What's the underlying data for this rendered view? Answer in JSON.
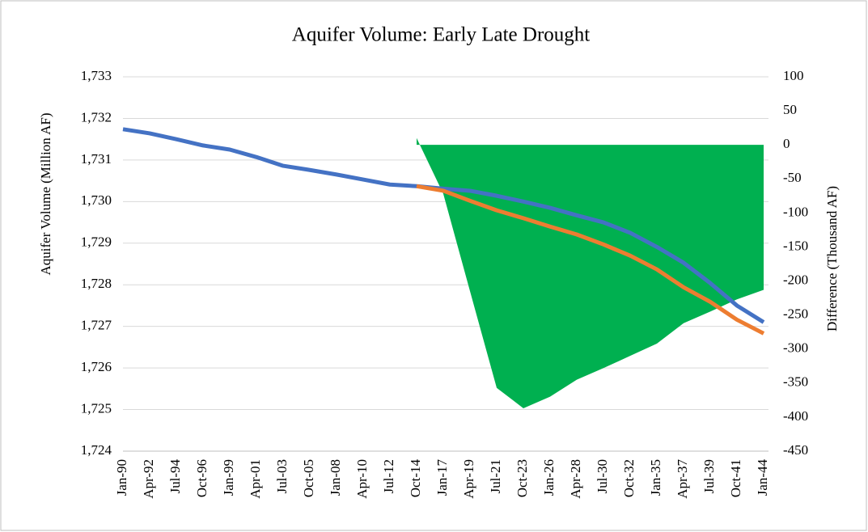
{
  "chart_data": {
    "type": "line",
    "title": "Aquifer Volume: Early Late Drought",
    "y_label": "Aquifer Volume (Million  AF)",
    "y2_label": "Difference (Thousand AF)",
    "categories": [
      "Jan-90",
      "Apr-92",
      "Jul-94",
      "Oct-96",
      "Jan-99",
      "Apr-01",
      "Jul-03",
      "Oct-05",
      "Jan-08",
      "Apr-10",
      "Jul-12",
      "Oct-14",
      "Jan-17",
      "Apr-19",
      "Jul-21",
      "Oct-23",
      "Jan-26",
      "Apr-28",
      "Jul-30",
      "Oct-32",
      "Jan-35",
      "Apr-37",
      "Jul-39",
      "Oct-41",
      "Jan-44"
    ],
    "series": [
      {
        "type": "area",
        "axis": "y2",
        "color": "#00b050",
        "values": [
          null,
          null,
          null,
          null,
          null,
          null,
          null,
          null,
          null,
          null,
          null,
          10,
          -72,
          -215,
          -357,
          -387,
          -370,
          -345,
          -328,
          -310,
          -292,
          -262,
          -245,
          -227,
          -213
        ]
      },
      {
        "type": "line",
        "color": "#4472c4",
        "values": [
          1731.74,
          1731.64,
          1731.5,
          1731.35,
          1731.25,
          1731.07,
          1730.86,
          1730.76,
          1730.65,
          1730.53,
          1730.41,
          1730.37,
          1730.31,
          1730.26,
          1730.14,
          1730.0,
          1729.85,
          1729.67,
          1729.5,
          1729.25,
          1728.91,
          1728.53,
          1728.04,
          1727.5,
          1727.1
        ]
      },
      {
        "type": "line",
        "color": "#ed7d31",
        "values": [
          null,
          null,
          null,
          null,
          null,
          null,
          null,
          null,
          null,
          null,
          null,
          1730.37,
          1730.26,
          1730.02,
          1729.79,
          1729.6,
          1729.4,
          1729.21,
          1728.97,
          1728.7,
          1728.37,
          1727.94,
          1727.59,
          1727.16,
          1726.83
        ]
      }
    ],
    "ylim": [
      1724,
      1733
    ],
    "yticks": [
      {
        "value": 1724,
        "label": "1,724"
      },
      {
        "value": 1725,
        "label": "1,725"
      },
      {
        "value": 1726,
        "label": "1,726"
      },
      {
        "value": 1727,
        "label": "1,727"
      },
      {
        "value": 1728,
        "label": "1,728"
      },
      {
        "value": 1729,
        "label": "1,729"
      },
      {
        "value": 1730,
        "label": "1,730"
      },
      {
        "value": 1731,
        "label": "1,731"
      },
      {
        "value": 1732,
        "label": "1,732"
      },
      {
        "value": 1733,
        "label": "1,733"
      }
    ],
    "y2lim": [
      -450,
      100
    ],
    "y2ticks": [
      100,
      50,
      0,
      -50,
      -100,
      -150,
      -200,
      -250,
      -300,
      -350,
      -400,
      -450
    ],
    "grid": true
  }
}
